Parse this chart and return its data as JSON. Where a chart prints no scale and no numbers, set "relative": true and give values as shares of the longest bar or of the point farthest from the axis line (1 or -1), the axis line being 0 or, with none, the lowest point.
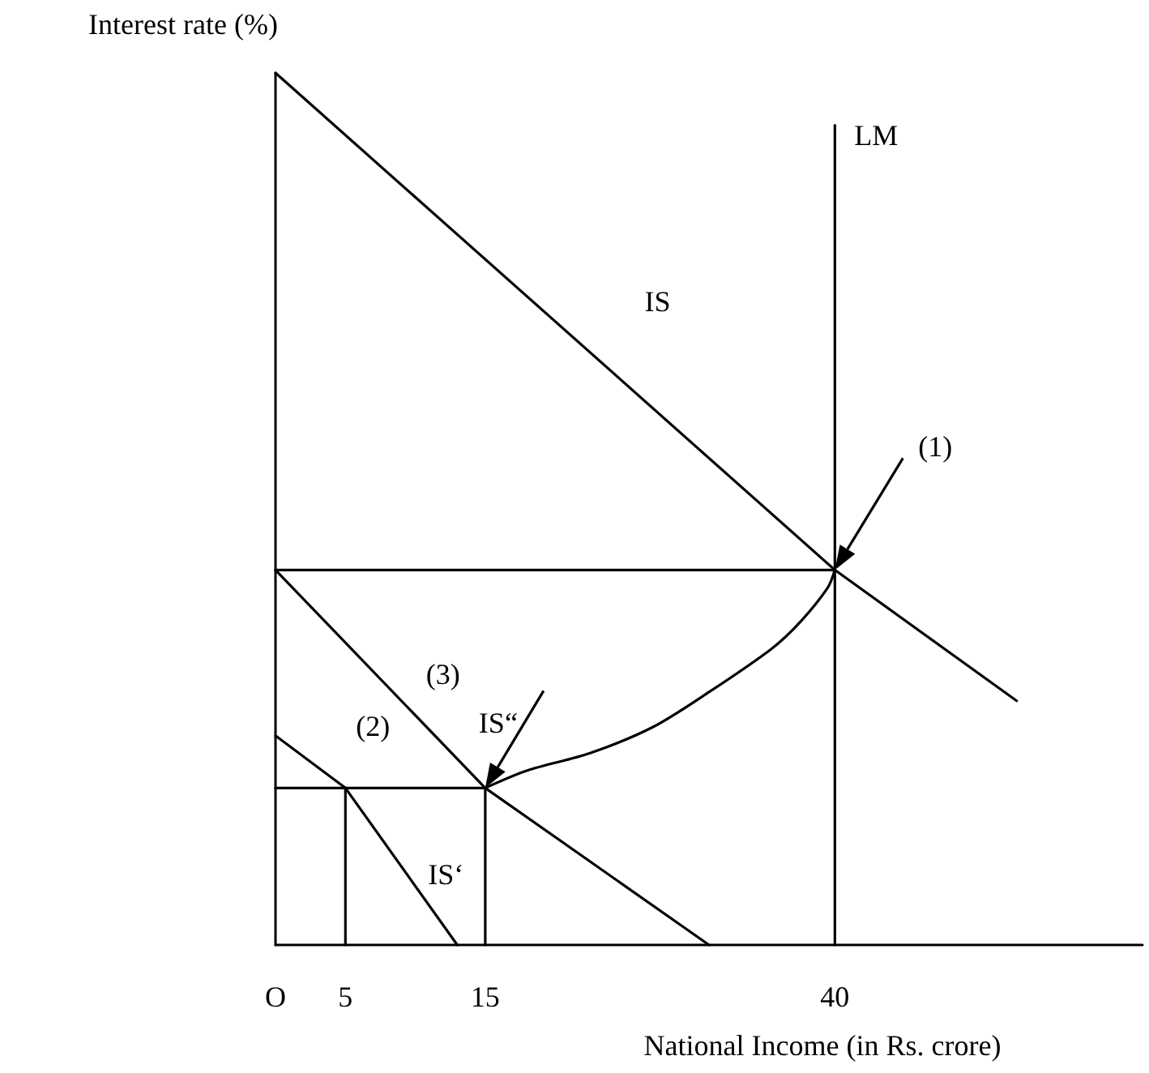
{
  "chart_data": {
    "type": "line",
    "relative": true,
    "xlabel": "National Income (in Rs. crore)",
    "ylabel": "Interest rate (%)",
    "xlim": [
      0,
      62
    ],
    "xticks": [
      {
        "value": 0,
        "label": "O"
      },
      5,
      15,
      40
    ],
    "series": [
      {
        "name": "IS",
        "color": "#000000",
        "x": [
          0,
          40,
          53
        ],
        "values": [
          1,
          0.43,
          0.28
        ]
      },
      {
        "name": "LM",
        "color": "#000000",
        "x": [
          40,
          40
        ],
        "values": [
          0,
          0.94
        ]
      },
      {
        "name": "IS“",
        "color": "#000000",
        "x": [
          0,
          15,
          31
        ],
        "values": [
          0.43,
          0.18,
          0
        ]
      },
      {
        "name": "IS‘",
        "color": "#000000",
        "x": [
          0,
          5,
          13
        ],
        "values": [
          0.24,
          0.18,
          0
        ]
      },
      {
        "color": "#000000",
        "x": [
          0,
          40
        ],
        "values": [
          0.43,
          0.43
        ]
      },
      {
        "color": "#000000",
        "x": [
          0,
          15
        ],
        "values": [
          0.18,
          0.18
        ]
      },
      {
        "color": "#000000",
        "x": [
          5,
          5
        ],
        "values": [
          0,
          0.18
        ]
      },
      {
        "color": "#000000",
        "x": [
          15,
          15
        ],
        "values": [
          0,
          0.18
        ]
      },
      {
        "color": "#000000",
        "x": [
          15,
          18,
          22.5,
          27,
          31,
          35.5,
          37.5,
          39.5,
          40
        ],
        "values": [
          0.18,
          0.2,
          0.22,
          0.25,
          0.29,
          0.34,
          0.37,
          0.41,
          0.43
        ]
      }
    ],
    "annotations": [
      "(1)",
      "(2)",
      "(3)"
    ]
  }
}
